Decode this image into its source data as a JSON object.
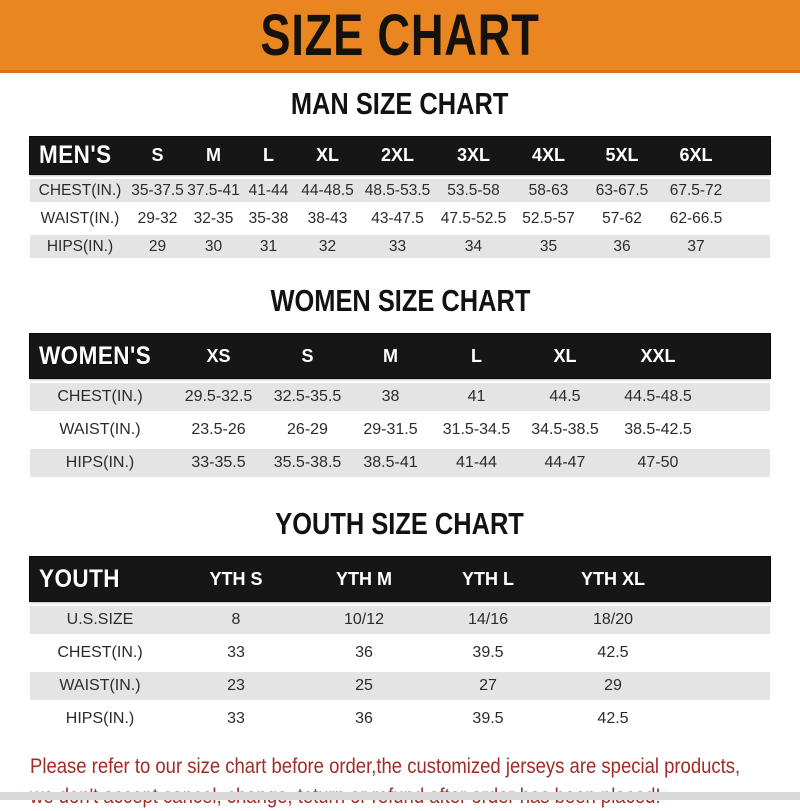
{
  "banner": {
    "title": "SIZE CHART"
  },
  "colors": {
    "banner_orange": "#EA861F",
    "header_bar_black": "#161616",
    "row_stripe_gray": "#E4E4E4",
    "footer_red": "#A12C26"
  },
  "sections": [
    {
      "heading": "MAN SIZE CHART",
      "table": {
        "corner_label": "MEN'S",
        "columns": [
          "S",
          "M",
          "L",
          "XL",
          "2XL",
          "3XL",
          "4XL",
          "5XL",
          "6XL"
        ],
        "rows": [
          {
            "label": "CHEST(IN.)",
            "values": [
              "35-37.5",
              "37.5-41",
              "41-44",
              "44-48.5",
              "48.5-53.5",
              "53.5-58",
              "58-63",
              "63-67.5",
              "67.5-72"
            ]
          },
          {
            "label": "WAIST(IN.)",
            "values": [
              "29-32",
              "32-35",
              "35-38",
              "38-43",
              "43-47.5",
              "47.5-52.5",
              "52.5-57",
              "57-62",
              "62-66.5"
            ]
          },
          {
            "label": "HIPS(IN.)",
            "values": [
              "29",
              "30",
              "31",
              "32",
              "33",
              "34",
              "35",
              "36",
              "37"
            ]
          }
        ]
      }
    },
    {
      "heading": "WOMEN SIZE CHART",
      "table": {
        "corner_label": "WOMEN'S",
        "columns": [
          "XS",
          "S",
          "M",
          "L",
          "XL",
          "XXL"
        ],
        "rows": [
          {
            "label": "CHEST(IN.)",
            "values": [
              "29.5-32.5",
              "32.5-35.5",
              "38",
              "41",
              "44.5",
              "44.5-48.5"
            ]
          },
          {
            "label": "WAIST(IN.)",
            "values": [
              "23.5-26",
              "26-29",
              "29-31.5",
              "31.5-34.5",
              "34.5-38.5",
              "38.5-42.5"
            ]
          },
          {
            "label": "HIPS(IN.)",
            "values": [
              "33-35.5",
              "35.5-38.5",
              "38.5-41",
              "41-44",
              "44-47",
              "47-50"
            ]
          }
        ]
      }
    },
    {
      "heading": "YOUTH SIZE CHART",
      "table": {
        "corner_label": "YOUTH",
        "columns": [
          "YTH S",
          "YTH M",
          "YTH L",
          "YTH XL"
        ],
        "rows": [
          {
            "label": "U.S.SIZE",
            "values": [
              "8",
              "10/12",
              "14/16",
              "18/20"
            ]
          },
          {
            "label": "CHEST(IN.)",
            "values": [
              "33",
              "36",
              "39.5",
              "42.5"
            ]
          },
          {
            "label": "WAIST(IN.)",
            "values": [
              "23",
              "25",
              "27",
              "29"
            ]
          },
          {
            "label": "HIPS(IN.)",
            "values": [
              "33",
              "36",
              "39.5",
              "42.5"
            ]
          }
        ]
      }
    }
  ],
  "footer": {
    "line1": "Please refer to our size chart before order,the customized jerseys are special products,",
    "line2": "we don't accept cancel, change, teturn or refund after order has been placed!"
  }
}
